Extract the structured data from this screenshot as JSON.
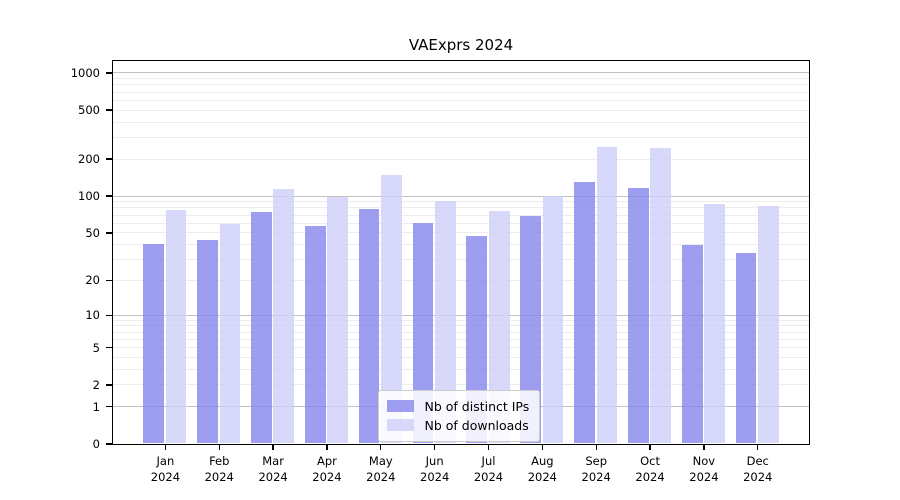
{
  "chart_data": {
    "type": "bar",
    "title": "VAExprs 2024",
    "categories": [
      "Jan 2024",
      "Feb 2024",
      "Mar 2024",
      "Apr 2024",
      "May 2024",
      "Jun 2024",
      "Jul 2024",
      "Aug 2024",
      "Sep 2024",
      "Oct 2024",
      "Nov 2024",
      "Dec 2024"
    ],
    "series": [
      {
        "name": "Nb of distinct IPs",
        "color": "rgba(134,134,238,0.8)",
        "values": [
          40,
          43,
          74,
          56,
          78,
          60,
          47,
          68,
          130,
          115,
          39,
          34
        ]
      },
      {
        "name": "Nb of downloads",
        "color": "rgba(206,206,250,0.8)",
        "values": [
          76,
          59,
          113,
          98,
          146,
          90,
          75,
          100,
          250,
          245,
          86,
          82
        ]
      }
    ],
    "y_scale": "log10(1+x)",
    "y_ticks": [
      0,
      1,
      2,
      5,
      10,
      20,
      50,
      100,
      200,
      500,
      1000
    ],
    "y_major_gridlines": [
      1,
      10,
      100,
      1000
    ],
    "y_minor_gridlines": [
      2,
      3,
      4,
      5,
      6,
      7,
      8,
      9,
      20,
      30,
      40,
      50,
      60,
      70,
      80,
      90,
      200,
      300,
      400,
      500,
      600,
      700,
      800,
      900
    ],
    "ylim": [
      0,
      1250
    ],
    "xlabel": "",
    "ylabel": "",
    "grid": true,
    "legend_position": "lower center"
  }
}
